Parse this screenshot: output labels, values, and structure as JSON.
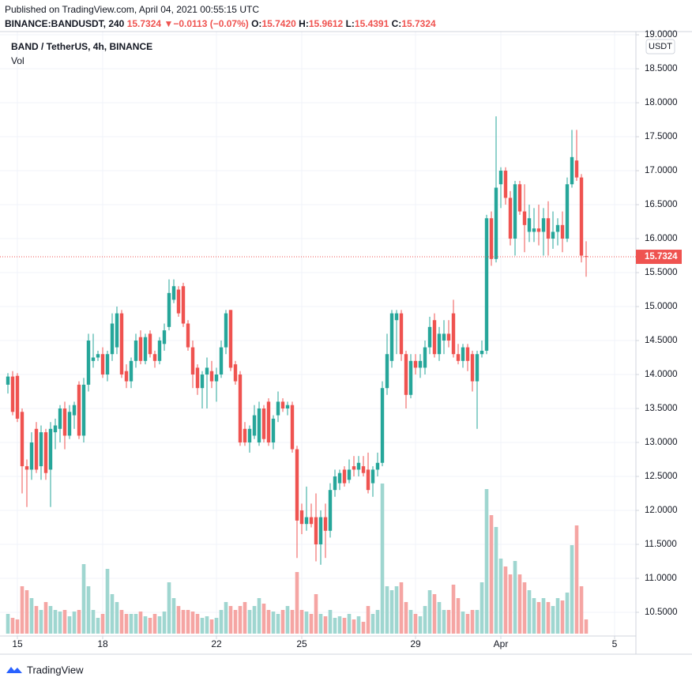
{
  "header": {
    "published": "Published on TradingView.com, April 04, 2021 00:55:15 UTC",
    "symbol": "BINANCE:BANDUSDT, 240",
    "last": "15.7324",
    "arrow": "▼",
    "change": "−0.0113 (−0.07%)",
    "o_label": "O:",
    "o": "15.7420",
    "h_label": "H:",
    "h": "15.9612",
    "l_label": "L:",
    "l": "15.4391",
    "c_label": "C:",
    "c": "15.7324"
  },
  "footer": {
    "brand": "TradingView"
  },
  "chart_data": {
    "type": "candlestick",
    "title": "BAND / TetherUS, 4h, BINANCE",
    "volume_label": "Vol",
    "currency": "USDT",
    "up_color": "#26a69a",
    "down_color": "#ef5350",
    "volume_up_color": "#9fd6d0",
    "volume_down_color": "#f5a5a3",
    "grid": true,
    "xlim": [
      -1.667,
      132.5
    ],
    "xticks": [
      {
        "value": 2,
        "label": "15"
      },
      {
        "value": 20,
        "label": "18"
      },
      {
        "value": 44,
        "label": "22"
      },
      {
        "value": 62,
        "label": "25"
      },
      {
        "value": 86,
        "label": "29"
      },
      {
        "value": 104,
        "label": "Apr"
      },
      {
        "value": 128,
        "label": "5"
      }
    ],
    "ylim": [
      10.151,
      19.047
    ],
    "yticks": [
      {
        "value": 10.5,
        "label": "10.5000"
      },
      {
        "value": 11,
        "label": "11.0000"
      },
      {
        "value": 11.5,
        "label": "11.5000"
      },
      {
        "value": 12,
        "label": "12.0000"
      },
      {
        "value": 12.5,
        "label": "12.5000"
      },
      {
        "value": 13,
        "label": "13.0000"
      },
      {
        "value": 13.5,
        "label": "13.5000"
      },
      {
        "value": 14,
        "label": "14.0000"
      },
      {
        "value": 14.5,
        "label": "14.5000"
      },
      {
        "value": 15,
        "label": "15.0000"
      },
      {
        "value": 15.5,
        "label": "15.5000"
      },
      {
        "value": 16,
        "label": "16.0000"
      },
      {
        "value": 16.5,
        "label": "16.5000"
      },
      {
        "value": 17,
        "label": "17.0000"
      },
      {
        "value": 17.5,
        "label": "17.5000"
      },
      {
        "value": 18,
        "label": "18.0000"
      },
      {
        "value": 18.5,
        "label": "18.5000"
      },
      {
        "value": 19,
        "label": "19.0000"
      }
    ],
    "volume_lim": [
      0,
      765
    ],
    "ohlc": [
      [
        13.85,
        14.02,
        13.72,
        13.97
      ],
      [
        13.97,
        14.05,
        13.4,
        13.45
      ],
      [
        13.98,
        14.02,
        13.3,
        13.35
      ],
      [
        13.45,
        13.5,
        12.25,
        12.65
      ],
      [
        12.65,
        12.75,
        12.05,
        12.6
      ],
      [
        12.6,
        13.15,
        12.45,
        13.0
      ],
      [
        13.2,
        13.3,
        12.55,
        12.6
      ],
      [
        12.65,
        13.25,
        12.45,
        13.15
      ],
      [
        13.15,
        13.2,
        12.45,
        12.55
      ],
      [
        12.6,
        13.3,
        12.05,
        13.2
      ],
      [
        13.15,
        13.35,
        12.9,
        13.25
      ],
      [
        13.2,
        13.55,
        13.0,
        13.5
      ],
      [
        13.5,
        13.6,
        12.9,
        13.1
      ],
      [
        13.1,
        13.55,
        13.05,
        13.45
      ],
      [
        13.4,
        13.6,
        13.2,
        13.55
      ],
      [
        13.85,
        13.9,
        13.05,
        13.1
      ],
      [
        13.1,
        13.95,
        13.0,
        13.85
      ],
      [
        13.85,
        14.6,
        13.75,
        14.5
      ],
      [
        14.2,
        14.6,
        14.1,
        14.25
      ],
      [
        14.25,
        14.35,
        14.2,
        14.3
      ],
      [
        14.3,
        14.4,
        13.95,
        14.0
      ],
      [
        14.0,
        14.35,
        13.9,
        14.3
      ],
      [
        14.3,
        14.9,
        14.2,
        14.75
      ],
      [
        14.4,
        15.0,
        14.3,
        14.9
      ],
      [
        14.9,
        14.95,
        13.95,
        14.0
      ],
      [
        14.05,
        14.15,
        13.8,
        13.9
      ],
      [
        13.9,
        14.25,
        13.8,
        14.2
      ],
      [
        14.2,
        14.6,
        14.1,
        14.5
      ],
      [
        14.55,
        14.65,
        14.15,
        14.2
      ],
      [
        14.2,
        14.6,
        14.15,
        14.55
      ],
      [
        14.6,
        14.65,
        14.25,
        14.3
      ],
      [
        14.3,
        14.35,
        14.1,
        14.2
      ],
      [
        14.2,
        14.55,
        14.15,
        14.5
      ],
      [
        14.45,
        14.75,
        14.35,
        14.65
      ],
      [
        14.7,
        15.4,
        14.65,
        15.2
      ],
      [
        15.1,
        15.4,
        15.05,
        15.3
      ],
      [
        15.25,
        15.3,
        14.85,
        14.9
      ],
      [
        15.3,
        15.35,
        14.7,
        14.75
      ],
      [
        14.75,
        14.8,
        14.35,
        14.4
      ],
      [
        14.4,
        14.5,
        13.8,
        14.0
      ],
      [
        14.1,
        14.15,
        13.7,
        13.8
      ],
      [
        13.8,
        14.05,
        13.5,
        14.0
      ],
      [
        14.0,
        14.25,
        13.5,
        14.1
      ],
      [
        14.05,
        14.2,
        13.8,
        13.9
      ],
      [
        13.9,
        14.1,
        13.6,
        14.0
      ],
      [
        14.0,
        14.5,
        13.95,
        14.4
      ],
      [
        14.4,
        14.95,
        14.3,
        14.9
      ],
      [
        14.95,
        14.95,
        14.05,
        14.1
      ],
      [
        14.15,
        14.2,
        13.85,
        13.9
      ],
      [
        14.0,
        14.05,
        12.95,
        13.0
      ],
      [
        13.2,
        13.3,
        12.95,
        13.0
      ],
      [
        13.0,
        13.25,
        12.85,
        13.2
      ],
      [
        13.1,
        13.55,
        13.05,
        13.4
      ],
      [
        13.0,
        13.6,
        12.95,
        13.5
      ],
      [
        13.5,
        13.55,
        13.0,
        13.05
      ],
      [
        13.6,
        13.65,
        12.95,
        13.0
      ],
      [
        13.0,
        13.4,
        12.9,
        13.35
      ],
      [
        13.4,
        13.75,
        13.3,
        13.6
      ],
      [
        13.6,
        13.65,
        13.45,
        13.5
      ],
      [
        13.5,
        13.6,
        13.4,
        13.55
      ],
      [
        13.55,
        13.6,
        12.85,
        12.9
      ],
      [
        12.9,
        12.95,
        11.3,
        11.85
      ],
      [
        12.0,
        12.1,
        11.65,
        11.8
      ],
      [
        11.8,
        12.35,
        11.7,
        11.9
      ],
      [
        11.9,
        12.1,
        11.75,
        11.8
      ],
      [
        11.9,
        12.25,
        11.25,
        11.5
      ],
      [
        11.5,
        12.0,
        11.2,
        11.9
      ],
      [
        11.9,
        12.1,
        11.3,
        11.7
      ],
      [
        11.7,
        12.4,
        11.6,
        12.3
      ],
      [
        12.3,
        12.6,
        12.2,
        12.5
      ],
      [
        12.4,
        12.6,
        12.3,
        12.55
      ],
      [
        12.6,
        12.65,
        12.35,
        12.4
      ],
      [
        12.45,
        12.75,
        12.4,
        12.6
      ],
      [
        12.65,
        12.8,
        12.5,
        12.6
      ],
      [
        12.6,
        12.8,
        12.5,
        12.7
      ],
      [
        12.65,
        12.8,
        12.5,
        12.55
      ],
      [
        12.6,
        12.85,
        12.25,
        12.3
      ],
      [
        12.4,
        12.65,
        12.2,
        12.6
      ],
      [
        12.6,
        12.85,
        12.5,
        12.7
      ],
      [
        12.7,
        13.9,
        12.65,
        13.8
      ],
      [
        13.8,
        14.6,
        13.7,
        14.3
      ],
      [
        14.2,
        14.95,
        14.1,
        14.9
      ],
      [
        14.8,
        14.95,
        14.3,
        14.9
      ],
      [
        14.9,
        14.95,
        14.2,
        14.3
      ],
      [
        14.3,
        14.35,
        13.5,
        13.7
      ],
      [
        13.7,
        14.3,
        13.65,
        14.2
      ],
      [
        14.2,
        14.3,
        14.0,
        14.1
      ],
      [
        14.1,
        14.3,
        13.95,
        14.2
      ],
      [
        14.1,
        14.5,
        14.0,
        14.4
      ],
      [
        14.4,
        14.85,
        14.3,
        14.7
      ],
      [
        14.8,
        14.9,
        14.25,
        14.3
      ],
      [
        14.3,
        14.7,
        14.2,
        14.6
      ],
      [
        14.5,
        14.8,
        14.3,
        14.6
      ],
      [
        14.6,
        14.8,
        14.4,
        14.5
      ],
      [
        14.9,
        15.1,
        14.25,
        14.3
      ],
      [
        14.3,
        14.45,
        14.15,
        14.2
      ],
      [
        14.2,
        14.45,
        14.1,
        14.4
      ],
      [
        14.4,
        14.45,
        14.05,
        14.2
      ],
      [
        14.3,
        14.35,
        13.75,
        13.9
      ],
      [
        13.9,
        14.35,
        13.2,
        14.3
      ],
      [
        14.3,
        14.5,
        14.25,
        14.35
      ],
      [
        14.35,
        16.35,
        14.3,
        16.3
      ],
      [
        16.3,
        16.4,
        15.6,
        15.7
      ],
      [
        15.7,
        17.8,
        15.65,
        16.75
      ],
      [
        16.8,
        17.05,
        16.45,
        17.0
      ],
      [
        17.0,
        17.05,
        16.5,
        16.6
      ],
      [
        16.6,
        16.7,
        15.9,
        16.0
      ],
      [
        16.0,
        16.85,
        15.75,
        16.8
      ],
      [
        16.8,
        16.85,
        16.35,
        16.4
      ],
      [
        16.4,
        16.8,
        15.8,
        16.2
      ],
      [
        16.1,
        16.5,
        15.95,
        16.3
      ],
      [
        16.1,
        16.45,
        15.95,
        16.15
      ],
      [
        16.15,
        16.5,
        15.9,
        16.1
      ],
      [
        16.1,
        16.45,
        15.75,
        16.3
      ],
      [
        16.3,
        16.55,
        15.75,
        16.0
      ],
      [
        16.0,
        16.4,
        15.85,
        16.1
      ],
      [
        16.1,
        16.3,
        15.9,
        16.2
      ],
      [
        16.2,
        16.4,
        15.8,
        16.0
      ],
      [
        16.0,
        16.9,
        15.95,
        16.8
      ],
      [
        16.8,
        17.6,
        16.75,
        17.2
      ],
      [
        17.15,
        17.6,
        16.85,
        16.9
      ],
      [
        16.9,
        16.95,
        15.65,
        15.75
      ],
      [
        15.742,
        15.9612,
        15.4391,
        15.7324
      ]
    ],
    "volume": [
      25,
      20,
      18,
      60,
      55,
      45,
      35,
      30,
      40,
      35,
      30,
      28,
      30,
      22,
      28,
      30,
      88,
      60,
      30,
      20,
      25,
      82,
      50,
      40,
      30,
      25,
      25,
      25,
      28,
      22,
      20,
      25,
      22,
      28,
      65,
      45,
      35,
      30,
      30,
      28,
      25,
      20,
      22,
      18,
      20,
      30,
      40,
      35,
      30,
      35,
      40,
      30,
      35,
      45,
      38,
      30,
      28,
      25,
      30,
      35,
      30,
      78,
      30,
      28,
      25,
      50,
      25,
      22,
      30,
      20,
      22,
      20,
      25,
      18,
      22,
      15,
      35,
      25,
      30,
      190,
      60,
      55,
      60,
      65,
      40,
      30,
      25,
      22,
      35,
      55,
      50,
      40,
      30,
      30,
      62,
      45,
      28,
      25,
      30,
      30,
      65,
      183,
      150,
      135,
      95,
      85,
      75,
      92,
      75,
      65,
      55,
      45,
      40,
      45,
      40,
      35,
      45,
      42,
      52,
      112,
      137,
      60,
      18
    ]
  }
}
